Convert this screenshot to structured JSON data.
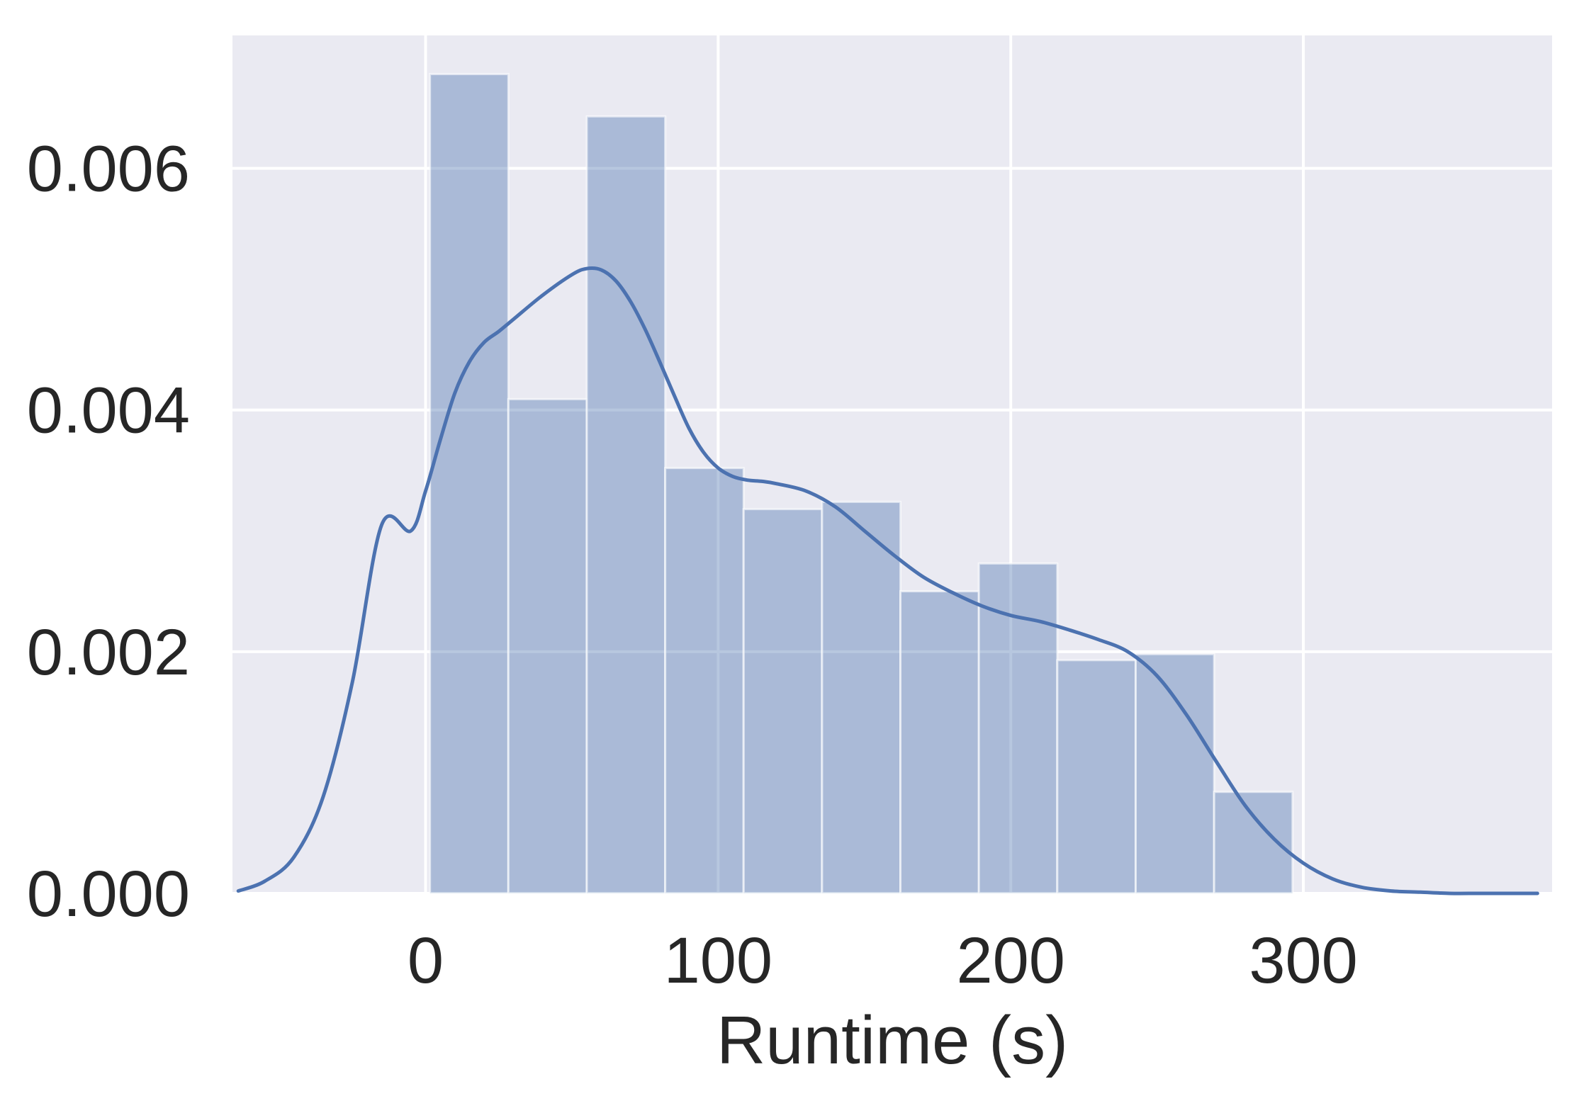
{
  "chart_data": {
    "type": "bar",
    "title": "",
    "xlabel": "Runtime (s)",
    "ylabel": "",
    "xlim": [
      -66,
      385
    ],
    "ylim": [
      0,
      0.0071
    ],
    "grid": true,
    "xticks": [
      0,
      100,
      200,
      300
    ],
    "xtick_labels": [
      "0",
      "100",
      "200",
      "300"
    ],
    "yticks": [
      0,
      0.002,
      0.004,
      0.006
    ],
    "ytick_labels": [
      "0.000",
      "0.002",
      "0.004",
      "0.006"
    ],
    "histogram": {
      "bin_edges": [
        1.5,
        28.3,
        55.1,
        81.9,
        108.7,
        135.5,
        162.3,
        189.1,
        215.9,
        242.7,
        269.5,
        296.3
      ],
      "values": [
        0.00678,
        0.00409,
        0.00643,
        0.00352,
        0.00318,
        0.00324,
        0.0025,
        0.00273,
        0.00193,
        0.00198,
        0.00084
      ]
    },
    "kde": {
      "x": [
        -64,
        -55,
        -45,
        -35,
        -25,
        -15,
        -5,
        0,
        5,
        10,
        15,
        20,
        25,
        30,
        40,
        50,
        55,
        60,
        65,
        70,
        75,
        80,
        85,
        90,
        95,
        100,
        105,
        110,
        115,
        120,
        130,
        140,
        150,
        160,
        170,
        180,
        190,
        200,
        210,
        220,
        230,
        240,
        250,
        260,
        270,
        280,
        290,
        300,
        310,
        320,
        330,
        340,
        350,
        360,
        370,
        380
      ],
      "y": [
        2e-05,
        0.0001,
        0.0003,
        0.0008,
        0.00175,
        0.00305,
        0.003,
        0.00333,
        0.00375,
        0.00414,
        0.0044,
        0.00456,
        0.00465,
        0.00475,
        0.00495,
        0.00512,
        0.00517,
        0.00516,
        0.00507,
        0.0049,
        0.00467,
        0.0044,
        0.00412,
        0.00385,
        0.00365,
        0.00352,
        0.00345,
        0.00342,
        0.00341,
        0.00339,
        0.00333,
        0.0032,
        0.003,
        0.0028,
        0.00262,
        0.00249,
        0.00238,
        0.0023,
        0.00225,
        0.00218,
        0.0021,
        0.002,
        0.0018,
        0.00148,
        0.0011,
        0.00073,
        0.00045,
        0.00025,
        0.00012,
        5e-05,
        2e-05,
        1e-05,
        0.0,
        0.0,
        0.0,
        0.0
      ]
    },
    "colors": {
      "background": "#eaeaf2",
      "grid": "#ffffff",
      "bar_fill": "#4c72b0",
      "bar_opacity": 0.4,
      "line": "#4c72b0",
      "text": "#262626"
    }
  }
}
